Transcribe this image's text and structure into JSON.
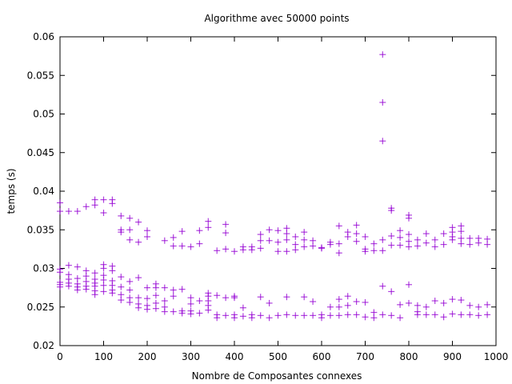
{
  "chart_data": {
    "type": "scatter",
    "title": "Algorithme avec 50000 points",
    "xlabel": "Nombre de Composantes connexes",
    "ylabel": "temps (s)",
    "xlim": [
      0,
      1000
    ],
    "ylim": [
      0.02,
      0.06
    ],
    "xticks": [
      0,
      100,
      200,
      300,
      400,
      500,
      600,
      700,
      800,
      900,
      1000
    ],
    "yticks": [
      0.02,
      0.025,
      0.03,
      0.035,
      0.04,
      0.045,
      0.05,
      0.055,
      0.06
    ],
    "xtick_labels": [
      "0",
      "100",
      "200",
      "300",
      "400",
      "500",
      "600",
      "700",
      "800",
      "900",
      "1000"
    ],
    "ytick_labels": [
      "0.02",
      "0.025",
      "0.03",
      "0.035",
      "0.04",
      "0.045",
      "0.05",
      "0.055",
      "0.06"
    ],
    "grid": false,
    "marker": "+",
    "color": "#9400d3",
    "series": [
      {
        "values_x": [
          0,
          0,
          0,
          0,
          0,
          0,
          0,
          20,
          20,
          20,
          20,
          20,
          20,
          40,
          40,
          40,
          40,
          40,
          40,
          60,
          60,
          60,
          60,
          60,
          60,
          80,
          80,
          80,
          80,
          80,
          80,
          80,
          80,
          100,
          100,
          100,
          100,
          100,
          100,
          100,
          100,
          120,
          120,
          120,
          120,
          120,
          120,
          120,
          120,
          140,
          140,
          140,
          140,
          140,
          140,
          140,
          160,
          160,
          160,
          160,
          160,
          160,
          160,
          180,
          180,
          180,
          180,
          180,
          180,
          200,
          200,
          200,
          200,
          200,
          200,
          220,
          220,
          220,
          220,
          220,
          240,
          240,
          240,
          240,
          240,
          260,
          260,
          260,
          260,
          260,
          280,
          280,
          280,
          280,
          280,
          300,
          300,
          300,
          300,
          300,
          320,
          320,
          320,
          320,
          340,
          340,
          340,
          340,
          340,
          340,
          340,
          360,
          360,
          360,
          360,
          380,
          380,
          380,
          380,
          380,
          400,
          400,
          400,
          400,
          400,
          420,
          420,
          420,
          420,
          440,
          440,
          440,
          440,
          460,
          460,
          460,
          460,
          460,
          480,
          480,
          480,
          480,
          500,
          500,
          500,
          500,
          520,
          520,
          520,
          520,
          520,
          520,
          540,
          540,
          540,
          540,
          560,
          560,
          560,
          560,
          560,
          580,
          580,
          580,
          580,
          600,
          600,
          600,
          600,
          620,
          620,
          620,
          620,
          640,
          640,
          640,
          640,
          640,
          640,
          660,
          660,
          660,
          660,
          660,
          680,
          680,
          680,
          680,
          680,
          700,
          700,
          700,
          700,
          700,
          720,
          720,
          720,
          720,
          740,
          740,
          740,
          740,
          740,
          740,
          740,
          760,
          760,
          760,
          760,
          760,
          760,
          780,
          780,
          780,
          780,
          780,
          800,
          800,
          800,
          800,
          800,
          800,
          800,
          820,
          820,
          820,
          820,
          820,
          840,
          840,
          840,
          840,
          860,
          860,
          860,
          860,
          880,
          880,
          880,
          880,
          900,
          900,
          900,
          900,
          900,
          900,
          920,
          920,
          920,
          920,
          920,
          920,
          940,
          940,
          940,
          940,
          960,
          960,
          960,
          960,
          980,
          980,
          980,
          980
        ],
        "values_y": [
          0.0385,
          0.0374,
          0.0299,
          0.0295,
          0.0282,
          0.0279,
          0.0276,
          0.0374,
          0.0304,
          0.0292,
          0.0286,
          0.0281,
          0.0277,
          0.0374,
          0.0302,
          0.0287,
          0.028,
          0.0276,
          0.0272,
          0.038,
          0.0297,
          0.029,
          0.0283,
          0.0277,
          0.0273,
          0.0389,
          0.0382,
          0.0294,
          0.0286,
          0.0281,
          0.0277,
          0.0271,
          0.0266,
          0.0389,
          0.0372,
          0.0305,
          0.03,
          0.0291,
          0.0285,
          0.0278,
          0.027,
          0.0389,
          0.0384,
          0.0303,
          0.0297,
          0.0284,
          0.0278,
          0.0272,
          0.0268,
          0.0368,
          0.035,
          0.0347,
          0.0289,
          0.0276,
          0.0266,
          0.0259,
          0.0365,
          0.035,
          0.0337,
          0.0283,
          0.0272,
          0.0262,
          0.0256,
          0.036,
          0.0334,
          0.0288,
          0.0262,
          0.0254,
          0.0249,
          0.0349,
          0.0341,
          0.0275,
          0.0261,
          0.0252,
          0.0247,
          0.028,
          0.0275,
          0.0265,
          0.0255,
          0.0248,
          0.0336,
          0.0275,
          0.0258,
          0.025,
          0.0244,
          0.034,
          0.0329,
          0.0272,
          0.0264,
          0.0244,
          0.0348,
          0.0329,
          0.0273,
          0.0245,
          0.0242,
          0.0328,
          0.0262,
          0.0254,
          0.0245,
          0.0241,
          0.0349,
          0.0332,
          0.0258,
          0.0242,
          0.0361,
          0.0353,
          0.0268,
          0.0264,
          0.0258,
          0.0252,
          0.0246,
          0.0323,
          0.0265,
          0.024,
          0.0236,
          0.0357,
          0.0346,
          0.0325,
          0.0262,
          0.0239,
          0.0322,
          0.0264,
          0.0262,
          0.024,
          0.0236,
          0.0328,
          0.0324,
          0.0249,
          0.0238,
          0.0328,
          0.0324,
          0.024,
          0.0236,
          0.0344,
          0.0336,
          0.0326,
          0.0263,
          0.0239,
          0.035,
          0.0336,
          0.0255,
          0.0236,
          0.0349,
          0.0334,
          0.0322,
          0.0239,
          0.0352,
          0.0345,
          0.0337,
          0.0322,
          0.0263,
          0.024,
          0.0341,
          0.0331,
          0.0324,
          0.0239,
          0.0347,
          0.0337,
          0.0328,
          0.0263,
          0.0239,
          0.0336,
          0.0329,
          0.0257,
          0.0239,
          0.0327,
          0.0326,
          0.024,
          0.0236,
          0.0334,
          0.0331,
          0.025,
          0.0239,
          0.0355,
          0.0332,
          0.032,
          0.026,
          0.025,
          0.0239,
          0.0347,
          0.0341,
          0.0264,
          0.0252,
          0.024,
          0.0356,
          0.0345,
          0.0335,
          0.0257,
          0.024,
          0.0341,
          0.0325,
          0.0322,
          0.0256,
          0.0237,
          0.0332,
          0.0323,
          0.0243,
          0.0236,
          0.0577,
          0.0515,
          0.0465,
          0.0337,
          0.0323,
          0.0277,
          0.024,
          0.0378,
          0.0375,
          0.0342,
          0.033,
          0.027,
          0.0239,
          0.0349,
          0.034,
          0.033,
          0.0253,
          0.0236,
          0.0369,
          0.0365,
          0.0344,
          0.0335,
          0.0328,
          0.0279,
          0.0255,
          0.0337,
          0.0329,
          0.0252,
          0.024,
          0.0244,
          0.0345,
          0.0333,
          0.025,
          0.024,
          0.0337,
          0.0328,
          0.0258,
          0.024,
          0.0345,
          0.0331,
          0.0255,
          0.0237,
          0.0353,
          0.0347,
          0.0341,
          0.0337,
          0.026,
          0.0241,
          0.0355,
          0.0348,
          0.0339,
          0.0332,
          0.0259,
          0.024,
          0.0339,
          0.0331,
          0.0252,
          0.024,
          0.0339,
          0.0333,
          0.025,
          0.0239,
          0.0338,
          0.0331,
          0.0253,
          0.024
        ]
      }
    ]
  }
}
